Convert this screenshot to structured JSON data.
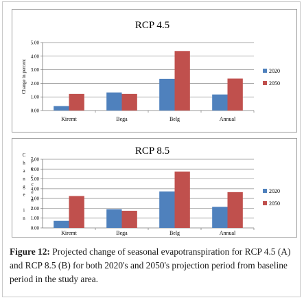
{
  "chart_data": [
    {
      "type": "bar",
      "title": "RCP 4.5",
      "ylabel": "Change in percent",
      "xlabel": "",
      "categories": [
        "Kiremt",
        "Bega",
        "Belg",
        "Annual"
      ],
      "series": [
        {
          "name": "2020",
          "values": [
            0.33,
            1.33,
            2.33,
            1.18
          ]
        },
        {
          "name": "2050",
          "values": [
            1.22,
            1.22,
            4.38,
            2.35
          ]
        }
      ],
      "ylim": [
        0,
        5
      ],
      "yticks": [
        "0.00",
        "1.00",
        "2.00",
        "3.00",
        "4.00",
        "5.00"
      ],
      "grid": true,
      "legend": "right"
    },
    {
      "type": "bar",
      "title": "RCP 8.5",
      "ylabel_letters": [
        "C",
        "h",
        "a",
        "n",
        "g",
        "e",
        "",
        "i",
        "n",
        "",
        "p",
        "e",
        "r",
        "c",
        "e",
        "n",
        "t"
      ],
      "xlabel": "",
      "categories": [
        "Kiremt",
        "Bega",
        "Belg",
        "Annual"
      ],
      "series": [
        {
          "name": "2020",
          "values": [
            0.72,
            1.9,
            3.72,
            2.15
          ]
        },
        {
          "name": "2050",
          "values": [
            3.25,
            1.75,
            5.75,
            3.65
          ]
        }
      ],
      "ylim": [
        0,
        7
      ],
      "yticks": [
        "0.00",
        "1.00",
        "2.00",
        "3.00",
        "4.00",
        "5.00",
        "6.00",
        "7.00"
      ],
      "grid": true,
      "legend": "right"
    }
  ],
  "colors": {
    "series_2020": "#4f81bd",
    "series_2050": "#c0504d",
    "grid": "#8c8c8c"
  },
  "caption": {
    "label": "Figure 12:",
    "text": " Projected change of seasonal evapotranspiration for RCP 4.5 (A) and RCP 8.5 (B) for both 2020's and 2050's projection period from baseline period in the study area."
  }
}
